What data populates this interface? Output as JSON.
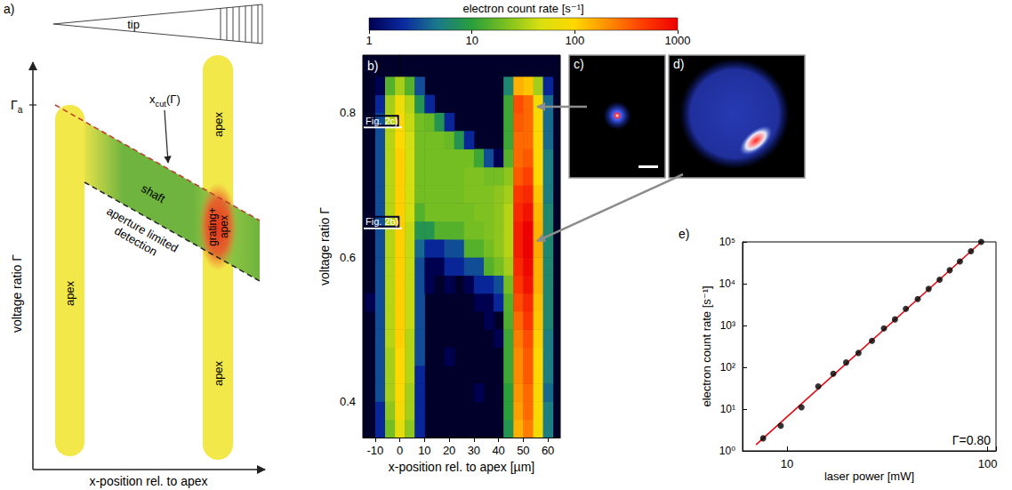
{
  "diagram_a": {
    "label": "a)",
    "tip": "tip",
    "y_axis_title": "voltage ratio Γ",
    "x_axis_title": "x-position rel. to apex",
    "y_mark": {
      "main": "Γ",
      "sub": "a"
    },
    "cut_line": {
      "main": "x",
      "sub": "cut",
      "after": "(Γ)"
    },
    "apex": "apex",
    "shaft": "shaft",
    "grating": [
      "grating+",
      "apex"
    ],
    "aperture": [
      "aperture limited",
      "detection"
    ]
  },
  "images": {
    "c": "c)",
    "d": "d)"
  },
  "chart_data": [
    {
      "type": "heatmap",
      "panel": "b)",
      "xlabel": "x-position rel. to apex [µm]",
      "ylabel": "voltage ratio Γ",
      "xlim": [
        -15,
        65
      ],
      "xticks": [
        -10,
        0,
        10,
        20,
        30,
        40,
        50,
        60
      ],
      "ylim": [
        0.35,
        0.88
      ],
      "yticks": [
        0.4,
        0.6,
        0.8
      ],
      "x_bins": [
        -14,
        -10,
        -6,
        -2,
        2,
        6,
        10,
        14,
        18,
        22,
        26,
        30,
        34,
        38,
        42,
        46,
        50,
        54,
        58,
        62
      ],
      "y_bins": [
        0.35,
        0.375,
        0.4,
        0.425,
        0.45,
        0.475,
        0.5,
        0.525,
        0.55,
        0.575,
        0.6,
        0.625,
        0.65,
        0.675,
        0.7,
        0.725,
        0.75,
        0.775,
        0.8,
        0.825,
        0.85
      ],
      "counts": [
        [
          null,
          2,
          20,
          60,
          25,
          2,
          null,
          null,
          null,
          null,
          null,
          null,
          null,
          null,
          8,
          150,
          250,
          80,
          5
        ],
        [
          null,
          2,
          25,
          80,
          30,
          2,
          null,
          null,
          null,
          null,
          null,
          null,
          null,
          null,
          10,
          180,
          300,
          90,
          5
        ],
        [
          null,
          3,
          30,
          90,
          30,
          2,
          null,
          null,
          null,
          null,
          null,
          1,
          null,
          null,
          10,
          200,
          300,
          90,
          4
        ],
        [
          null,
          3,
          30,
          100,
          35,
          2,
          null,
          null,
          null,
          null,
          null,
          null,
          null,
          null,
          12,
          220,
          350,
          100,
          5
        ],
        [
          null,
          3,
          30,
          100,
          35,
          3,
          null,
          null,
          1,
          null,
          null,
          null,
          null,
          null,
          12,
          220,
          350,
          100,
          5
        ],
        [
          null,
          3,
          35,
          110,
          35,
          3,
          null,
          null,
          null,
          null,
          null,
          null,
          null,
          1,
          12,
          250,
          400,
          110,
          5
        ],
        [
          null,
          3,
          35,
          110,
          40,
          3,
          null,
          null,
          null,
          null,
          null,
          null,
          1,
          null,
          14,
          300,
          500,
          120,
          6
        ],
        [
          1,
          3,
          35,
          110,
          40,
          3,
          null,
          null,
          null,
          null,
          null,
          1,
          1,
          2,
          15,
          400,
          600,
          130,
          6
        ],
        [
          null,
          3,
          35,
          110,
          40,
          3,
          1,
          null,
          1,
          null,
          1,
          2,
          2,
          3,
          20,
          500,
          800,
          150,
          6
        ],
        [
          null,
          3,
          35,
          110,
          40,
          3,
          1,
          1,
          2,
          2,
          3,
          3,
          15,
          20,
          30,
          600,
          900,
          150,
          6
        ],
        [
          null,
          3,
          35,
          110,
          40,
          4,
          2,
          2,
          3,
          3,
          15,
          15,
          20,
          25,
          35,
          700,
          1000,
          160,
          6
        ],
        [
          null,
          3,
          35,
          110,
          40,
          8,
          8,
          15,
          15,
          15,
          20,
          20,
          22,
          25,
          35,
          700,
          1000,
          150,
          6
        ],
        [
          null,
          3,
          35,
          110,
          45,
          15,
          20,
          20,
          20,
          20,
          20,
          22,
          22,
          25,
          35,
          600,
          800,
          140,
          6
        ],
        [
          null,
          3,
          35,
          110,
          45,
          20,
          20,
          20,
          20,
          20,
          22,
          22,
          22,
          25,
          30,
          500,
          600,
          120,
          5
        ],
        [
          null,
          3,
          35,
          110,
          45,
          20,
          20,
          20,
          20,
          20,
          22,
          22,
          20,
          20,
          25,
          350,
          450,
          100,
          5
        ],
        [
          null,
          3,
          35,
          110,
          45,
          20,
          20,
          20,
          20,
          20,
          20,
          12,
          3,
          1,
          15,
          300,
          350,
          100,
          5
        ],
        [
          null,
          3,
          35,
          100,
          45,
          20,
          20,
          20,
          18,
          8,
          2,
          null,
          null,
          null,
          12,
          300,
          300,
          100,
          4
        ],
        [
          null,
          3,
          35,
          90,
          40,
          20,
          18,
          8,
          2,
          null,
          null,
          null,
          null,
          null,
          12,
          350,
          300,
          90,
          4
        ],
        [
          null,
          2,
          30,
          70,
          35,
          8,
          2,
          null,
          null,
          null,
          null,
          null,
          null,
          null,
          12,
          400,
          300,
          80,
          4
        ],
        [
          null,
          1,
          15,
          30,
          15,
          3,
          null,
          null,
          null,
          null,
          null,
          null,
          null,
          null,
          6,
          150,
          120,
          30,
          2
        ]
      ],
      "colorbar": {
        "title": "electron count rate [s⁻¹]",
        "range": [
          1,
          1000
        ],
        "ticks": [
          1,
          10,
          100,
          1000
        ],
        "log": true
      },
      "annotations": [
        {
          "text": "Fig. 2c)",
          "y": 0.78
        },
        {
          "text": "Fig. 2b)",
          "y": 0.64
        }
      ]
    },
    {
      "type": "scatter",
      "panel": "e)",
      "xlabel": "laser power [mW]",
      "ylabel": "electron count rate [s⁻¹]",
      "log": true,
      "grid": false,
      "xlim": [
        6,
        110
      ],
      "xticks": [
        10,
        100
      ],
      "ylim": [
        1,
        100000
      ],
      "yticks": [
        {
          "value": 1,
          "label": "10⁰"
        },
        {
          "value": 10,
          "label": "10¹"
        },
        {
          "value": 100,
          "label": "10²"
        },
        {
          "value": 1000,
          "label": "10³"
        },
        {
          "value": 10000,
          "label": "10⁴"
        },
        {
          "value": 100000,
          "label": "10⁵"
        }
      ],
      "series": [
        {
          "type": "line",
          "color": "#e8000b",
          "line_style": "solid",
          "x": [
            7,
            93
          ],
          "values": [
            1.4,
            100000
          ]
        },
        {
          "type": "scatter",
          "color": "#000000",
          "marker": "circle",
          "x": [
            7.6,
            9.3,
            11.8,
            14.3,
            17,
            19.7,
            22.7,
            26.5,
            30.4,
            34.5,
            39.1,
            44.8,
            50.8,
            57.6,
            64.7,
            72.7,
            82.5,
            92.8
          ],
          "values": [
            2,
            4,
            11,
            35,
            70,
            130,
            220,
            430,
            850,
            1400,
            2500,
            4300,
            7500,
            12500,
            21000,
            34000,
            60000,
            100000
          ]
        }
      ],
      "annotation": "Γ=0.80"
    }
  ]
}
